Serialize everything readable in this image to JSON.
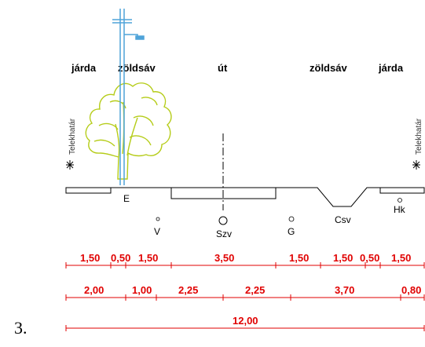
{
  "figure_number": "3.",
  "sections": {
    "jarda_left": "járda",
    "zoldsav_left": "zöldsáv",
    "ut": "út",
    "zoldsav_right": "zöldsáv",
    "jarda_right": "járda"
  },
  "boundary_labels": {
    "left": "Telekhatár",
    "right": "Telekhatár"
  },
  "utilities": {
    "E": "E",
    "V": "V",
    "Szv": "Szv",
    "G": "G",
    "Csv": "Csv",
    "Hk": "Hk"
  },
  "dimensions": {
    "row1": [
      "1,50",
      "0,50",
      "1,50",
      "3,50",
      "1,50",
      "1,50",
      "0,50",
      "1,50"
    ],
    "row2": [
      "2,00",
      "1,00",
      "2,25",
      "2,25",
      "3,70",
      "0,80"
    ],
    "row3": [
      "12,00"
    ]
  },
  "colors": {
    "dimension": "#e00000",
    "tree": "#b5cc18",
    "pole": "#4fa3d9",
    "line": "#000000"
  }
}
